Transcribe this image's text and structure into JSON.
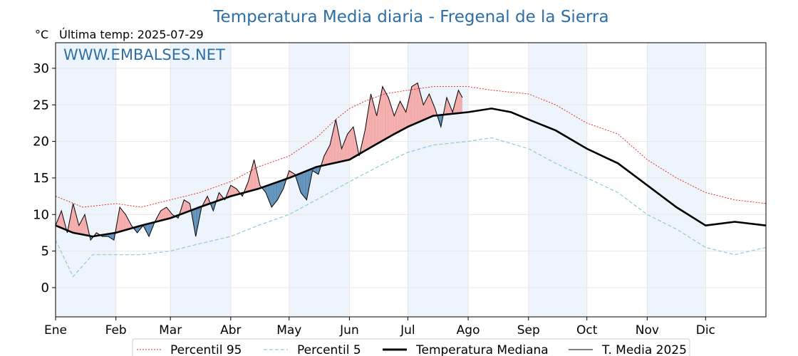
{
  "chart_data": {
    "type": "line",
    "title": "Temperatura Media diaria - Fregenal de la Sierra",
    "unit_label": "°C",
    "last_temp_label": "Última temp: 2025-07-29",
    "watermark": "WWW.EMBALSES.NET",
    "ylim": [
      -4,
      33.5
    ],
    "yticks": [
      0,
      5,
      10,
      15,
      20,
      25,
      30
    ],
    "xlim": [
      1,
      366
    ],
    "months": [
      "Ene",
      "Feb",
      "Mar",
      "Abr",
      "May",
      "Jun",
      "Jul",
      "Ago",
      "Sep",
      "Oct",
      "Nov",
      "Dic"
    ],
    "month_start_days": [
      1,
      32,
      60,
      91,
      121,
      152,
      182,
      213,
      244,
      274,
      305,
      335
    ],
    "grid": true,
    "alternate_month_shading": true,
    "legend_position": "bottom",
    "colors": {
      "p95": "#e31a1c",
      "p5": "#8ec9e0",
      "median": "#000000",
      "current": "#000000",
      "above_fill": "#f4a9a9",
      "below_fill": "#5b8db8",
      "band": "#eef4fb",
      "title": "#2d6fa5"
    },
    "series": [
      {
        "name": "Percentil 95",
        "style": "dotted-thin-red",
        "x": [
          1,
          15,
          32,
          45,
          60,
          75,
          91,
          105,
          121,
          135,
          145,
          152,
          160,
          170,
          182,
          195,
          213,
          225,
          244,
          258,
          274,
          290,
          305,
          320,
          335,
          350,
          366
        ],
        "values": [
          12.5,
          11.0,
          11.5,
          11.0,
          12.0,
          13.0,
          14.5,
          16.5,
          18.0,
          20.5,
          23.0,
          24.5,
          25.5,
          26.5,
          27.0,
          27.5,
          27.5,
          27.0,
          26.5,
          25.0,
          22.5,
          21.0,
          17.5,
          15.0,
          13.0,
          12.0,
          11.5
        ]
      },
      {
        "name": "Percentil 5",
        "style": "dashed-thin-lightblue",
        "x": [
          1,
          10,
          20,
          32,
          45,
          60,
          75,
          91,
          105,
          121,
          135,
          152,
          170,
          182,
          195,
          213,
          225,
          244,
          258,
          274,
          290,
          305,
          320,
          335,
          350,
          366
        ],
        "values": [
          6.5,
          1.5,
          4.5,
          4.5,
          4.5,
          5.0,
          6.0,
          7.0,
          8.5,
          10.0,
          12.0,
          14.5,
          17.0,
          18.5,
          19.5,
          20.0,
          20.5,
          19.0,
          17.0,
          15.0,
          13.0,
          10.0,
          8.0,
          5.5,
          4.5,
          5.5
        ]
      },
      {
        "name": "Temperatura Mediana",
        "style": "thick-black",
        "x": [
          1,
          10,
          20,
          32,
          45,
          60,
          75,
          91,
          105,
          121,
          135,
          152,
          165,
          175,
          182,
          195,
          213,
          225,
          235,
          244,
          258,
          274,
          290,
          305,
          320,
          335,
          350,
          366
        ],
        "values": [
          8.5,
          7.5,
          7.0,
          7.5,
          8.5,
          9.5,
          11.0,
          12.5,
          13.5,
          15.0,
          16.5,
          17.5,
          19.5,
          21.0,
          22.0,
          23.5,
          24.0,
          24.5,
          24.0,
          23.0,
          21.5,
          19.0,
          17.0,
          14.0,
          11.0,
          8.5,
          9.0,
          8.5
        ]
      },
      {
        "name": "T. Media 2025",
        "style": "thin-black",
        "x": [
          1,
          4,
          7,
          10,
          13,
          16,
          19,
          22,
          25,
          28,
          31,
          34,
          37,
          40,
          43,
          46,
          49,
          52,
          55,
          58,
          61,
          64,
          67,
          70,
          73,
          76,
          79,
          82,
          85,
          88,
          91,
          94,
          97,
          100,
          103,
          106,
          109,
          112,
          115,
          118,
          121,
          124,
          127,
          130,
          133,
          136,
          139,
          142,
          145,
          148,
          151,
          154,
          157,
          160,
          163,
          166,
          169,
          172,
          175,
          178,
          181,
          184,
          187,
          190,
          193,
          196,
          199,
          202,
          205,
          208,
          210
        ],
        "values": [
          8.5,
          10.5,
          7.5,
          11.5,
          8.5,
          10.0,
          6.5,
          7.5,
          7.0,
          7.0,
          6.5,
          11.0,
          10.0,
          8.5,
          7.5,
          8.5,
          7.0,
          9.0,
          10.5,
          11.0,
          10.0,
          9.5,
          12.0,
          11.5,
          7.0,
          11.0,
          12.5,
          10.5,
          13.0,
          12.0,
          14.0,
          13.5,
          12.5,
          14.5,
          17.5,
          14.0,
          13.0,
          11.0,
          12.0,
          13.5,
          16.0,
          15.5,
          13.0,
          12.0,
          16.0,
          15.5,
          18.0,
          19.5,
          23.0,
          19.0,
          21.0,
          22.0,
          18.0,
          21.5,
          26.5,
          23.5,
          27.5,
          26.0,
          23.5,
          25.5,
          24.0,
          27.5,
          28.0,
          25.0,
          26.5,
          24.5,
          22.0,
          26.0,
          24.0,
          27.0,
          26.0
        ]
      }
    ]
  }
}
